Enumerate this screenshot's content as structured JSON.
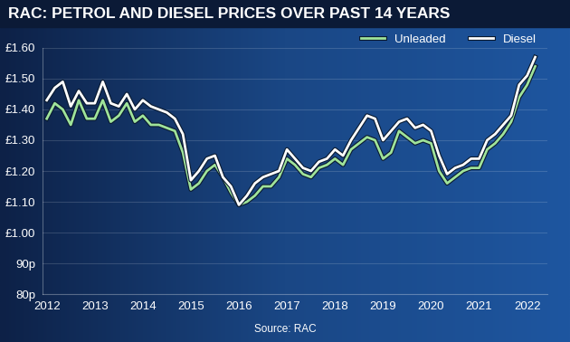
{
  "chart_data": {
    "type": "line",
    "title": "RAC: PETROL AND DIESEL PRICES OVER PAST 14 YEARS",
    "source": "Source: RAC",
    "categories": [
      "2012",
      null,
      null,
      null,
      null,
      null,
      "2013",
      null,
      null,
      null,
      null,
      null,
      "2014",
      null,
      null,
      null,
      null,
      null,
      "2015",
      null,
      null,
      null,
      null,
      null,
      "2016",
      null,
      null,
      null,
      null,
      null,
      "2017",
      null,
      null,
      null,
      null,
      null,
      "2018",
      null,
      null,
      null,
      null,
      null,
      "2019",
      null,
      null,
      null,
      null,
      null,
      "2020",
      null,
      null,
      null,
      null,
      null,
      "2021",
      null,
      null,
      null,
      null,
      null,
      "2022",
      null
    ],
    "series": [
      {
        "name": "Unleaded",
        "color": "#9fe39a",
        "values": [
          1.37,
          1.42,
          1.4,
          1.35,
          1.43,
          1.37,
          1.37,
          1.43,
          1.36,
          1.38,
          1.42,
          1.36,
          1.38,
          1.35,
          1.35,
          1.34,
          1.33,
          1.26,
          1.14,
          1.16,
          1.2,
          1.22,
          1.18,
          1.13,
          1.09,
          1.1,
          1.12,
          1.15,
          1.15,
          1.18,
          1.24,
          1.22,
          1.19,
          1.18,
          1.21,
          1.22,
          1.24,
          1.22,
          1.27,
          1.29,
          1.31,
          1.3,
          1.24,
          1.26,
          1.33,
          1.31,
          1.29,
          1.3,
          1.29,
          1.2,
          1.16,
          1.18,
          1.2,
          1.21,
          1.21,
          1.27,
          1.29,
          1.32,
          1.36,
          1.44,
          1.48,
          1.54
        ]
      },
      {
        "name": "Diesel",
        "color": "#ffffff",
        "values": [
          1.43,
          1.47,
          1.49,
          1.41,
          1.46,
          1.42,
          1.42,
          1.49,
          1.42,
          1.41,
          1.45,
          1.4,
          1.43,
          1.41,
          1.4,
          1.39,
          1.37,
          1.32,
          1.17,
          1.2,
          1.24,
          1.25,
          1.18,
          1.15,
          1.09,
          1.12,
          1.16,
          1.18,
          1.19,
          1.2,
          1.27,
          1.24,
          1.21,
          1.2,
          1.23,
          1.24,
          1.27,
          1.25,
          1.3,
          1.34,
          1.38,
          1.37,
          1.3,
          1.33,
          1.36,
          1.37,
          1.34,
          1.35,
          1.33,
          1.25,
          1.19,
          1.21,
          1.22,
          1.24,
          1.24,
          1.3,
          1.32,
          1.35,
          1.38,
          1.48,
          1.51,
          1.57
        ]
      }
    ],
    "ylim": [
      0.8,
      1.6
    ],
    "yticks": [
      {
        "value": 0.8,
        "label": "80p"
      },
      {
        "value": 0.9,
        "label": "90p"
      },
      {
        "value": 1.0,
        "label": "£1.00"
      },
      {
        "value": 1.1,
        "label": "£1.10"
      },
      {
        "value": 1.2,
        "label": "£1.20"
      },
      {
        "value": 1.3,
        "label": "£1.30"
      },
      {
        "value": 1.4,
        "label": "£1.40"
      },
      {
        "value": 1.5,
        "label": "£1.50"
      },
      {
        "value": 1.6,
        "label": "£1.60"
      }
    ],
    "grid": true,
    "legend": "upper right"
  }
}
